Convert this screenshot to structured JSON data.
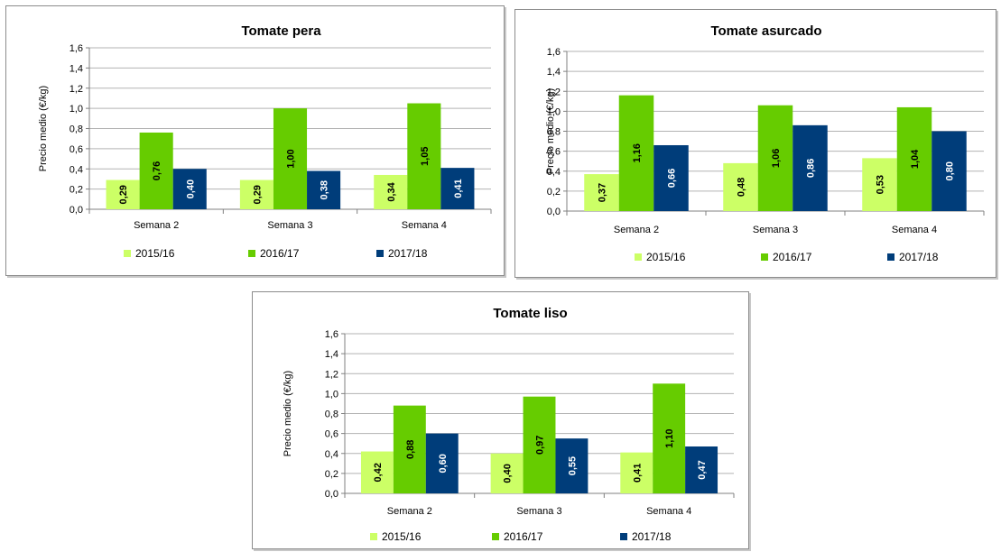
{
  "colors": {
    "s1": "#ccff66",
    "s2": "#66cc00",
    "s3": "#003d7a",
    "grid": "#b3b3b3",
    "axis": "#808080"
  },
  "chart_data": [
    {
      "id": "pera",
      "type": "bar",
      "title": "Tomate pera",
      "ylabel": "Precio medio (€/kg)",
      "ylim": [
        0,
        1.6
      ],
      "yticks": [
        "0,0",
        "0,2",
        "0,4",
        "0,6",
        "0,8",
        "1,0",
        "1,2",
        "1,4",
        "1,6"
      ],
      "categories": [
        "Semana 2",
        "Semana 3",
        "Semana 4"
      ],
      "series": [
        {
          "name": "2015/16",
          "values": [
            0.29,
            0.29,
            0.34
          ],
          "labels": [
            "0,29",
            "0,29",
            "0,34"
          ]
        },
        {
          "name": "2016/17",
          "values": [
            0.76,
            1.0,
            1.05
          ],
          "labels": [
            "0,76",
            "1,00",
            "1,05"
          ]
        },
        {
          "name": "2017/18",
          "values": [
            0.4,
            0.38,
            0.41
          ],
          "labels": [
            "0,40",
            "0,38",
            "0,41"
          ]
        }
      ],
      "grid": true,
      "legend": "bottom"
    },
    {
      "id": "asurcado",
      "type": "bar",
      "title": "Tomate asurcado",
      "ylabel": "Precio medio (€/kg)",
      "ylim": [
        0,
        1.6
      ],
      "yticks": [
        "0,0",
        "0,2",
        "0,4",
        "0,6",
        "0,8",
        "1,0",
        "1,2",
        "1,4",
        "1,6"
      ],
      "categories": [
        "Semana 2",
        "Semana 3",
        "Semana 4"
      ],
      "series": [
        {
          "name": "2015/16",
          "values": [
            0.37,
            0.48,
            0.53
          ],
          "labels": [
            "0,37",
            "0,48",
            "0,53"
          ]
        },
        {
          "name": "2016/17",
          "values": [
            1.16,
            1.06,
            1.04
          ],
          "labels": [
            "1,16",
            "1,06",
            "1,04"
          ]
        },
        {
          "name": "2017/18",
          "values": [
            0.66,
            0.86,
            0.8
          ],
          "labels": [
            "0,66",
            "0,86",
            "0,80"
          ]
        }
      ],
      "grid": true,
      "legend": "bottom"
    },
    {
      "id": "liso",
      "type": "bar",
      "title": "Tomate liso",
      "ylabel": "Precio medio (€/kg)",
      "ylim": [
        0,
        1.6
      ],
      "yticks": [
        "0,0",
        "0,2",
        "0,4",
        "0,6",
        "0,8",
        "1,0",
        "1,2",
        "1,4",
        "1,6"
      ],
      "categories": [
        "Semana 2",
        "Semana 3",
        "Semana 4"
      ],
      "series": [
        {
          "name": "2015/16",
          "values": [
            0.42,
            0.4,
            0.41
          ],
          "labels": [
            "0,42",
            "0,40",
            "0,41"
          ]
        },
        {
          "name": "2016/17",
          "values": [
            0.88,
            0.97,
            1.1
          ],
          "labels": [
            "0,88",
            "0,97",
            "1,10"
          ]
        },
        {
          "name": "2017/18",
          "values": [
            0.6,
            0.55,
            0.47
          ],
          "labels": [
            "0,60",
            "0,55",
            "0,47"
          ]
        }
      ],
      "grid": true,
      "legend": "bottom"
    }
  ]
}
